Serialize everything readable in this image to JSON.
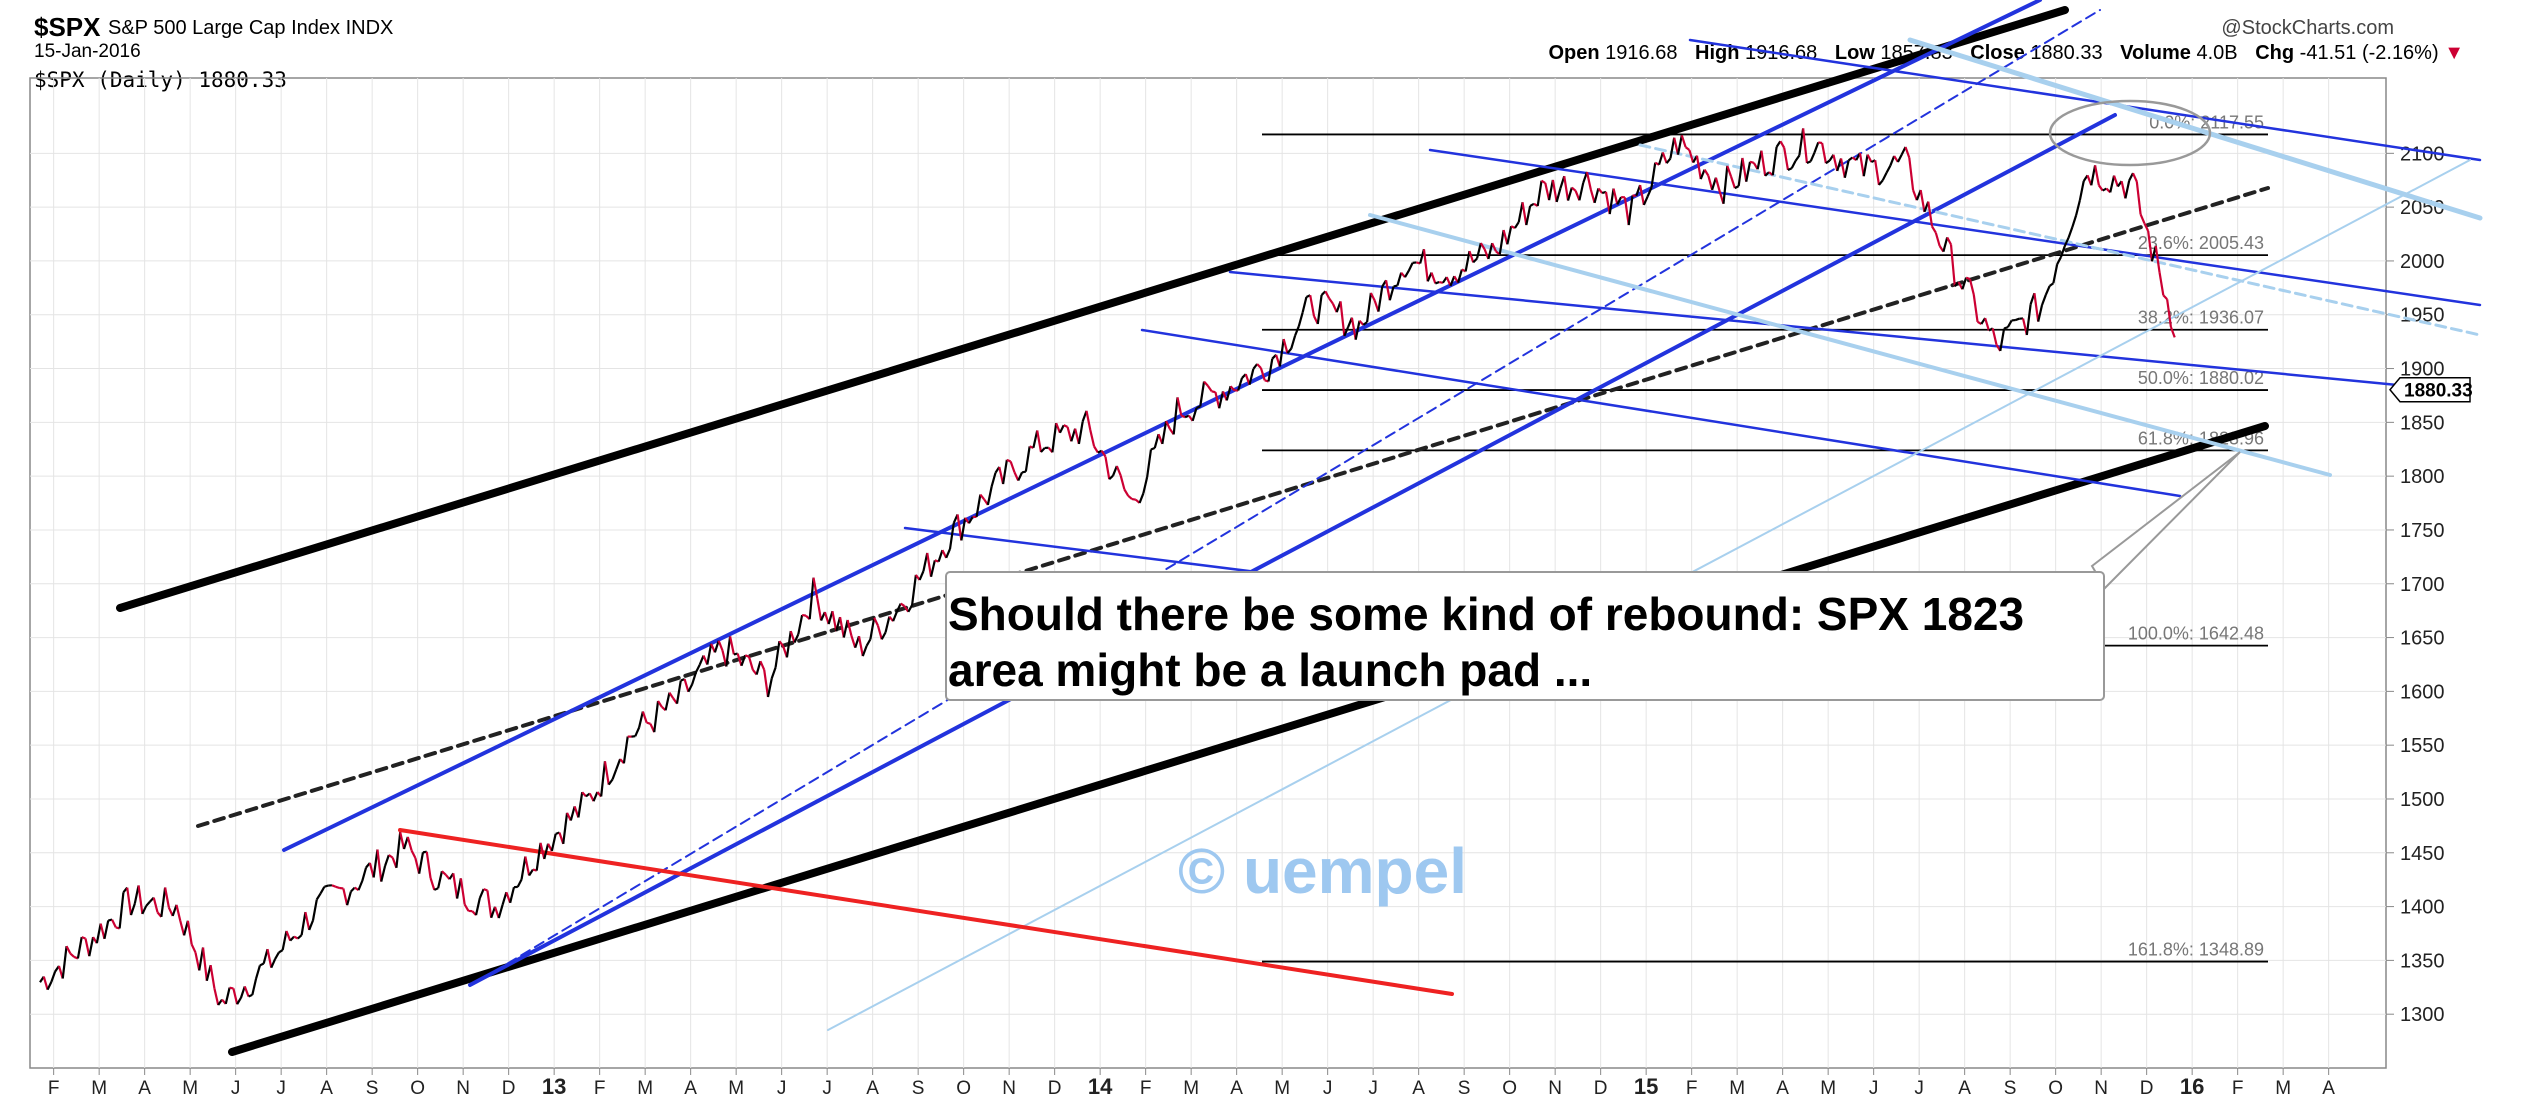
{
  "header": {
    "ticker": "$SPX",
    "name": "S&P 500 Large Cap Index",
    "exchange": "INDX",
    "date": "15-Jan-2016",
    "series_label": "$SPX (Daily) 1880.33",
    "source": "@StockCharts.com",
    "ohlc": {
      "open_label": "Open",
      "open": "1916.68",
      "high_label": "High",
      "high": "1916.68",
      "low_label": "Low",
      "low": "1857.83",
      "close_label": "Close",
      "close": "1880.33",
      "volume_label": "Volume",
      "volume": "4.0B",
      "chg_label": "Chg",
      "chg": "-41.51 (-2.16%)"
    }
  },
  "chart_data": {
    "type": "line",
    "title": "$SPX (Daily) 1880.33",
    "last_price": 1880.33,
    "last_price_label": "1880.33",
    "ylim": [
      1250,
      2170
    ],
    "y_ticks": [
      1300,
      1350,
      1400,
      1450,
      1500,
      1550,
      1600,
      1650,
      1700,
      1750,
      1800,
      1850,
      1900,
      1950,
      2000,
      2050,
      2100
    ],
    "x_tick_labels": [
      "F",
      "M",
      "A",
      "M",
      "J",
      "J",
      "A",
      "S",
      "O",
      "N",
      "D",
      "13",
      "F",
      "M",
      "A",
      "M",
      "J",
      "J",
      "A",
      "S",
      "O",
      "N",
      "D",
      "14",
      "F",
      "M",
      "A",
      "M",
      "J",
      "J",
      "A",
      "S",
      "O",
      "N",
      "D",
      "15",
      "F",
      "M",
      "A",
      "M",
      "J",
      "J",
      "A",
      "S",
      "O",
      "N",
      "D",
      "16",
      "F",
      "M",
      "A"
    ],
    "grid": true,
    "price_series": {
      "name": "$SPX",
      "x_month_index": [
        0,
        1,
        2,
        3,
        4,
        5,
        6,
        7,
        8,
        9,
        10,
        11,
        12,
        13,
        14,
        15,
        16,
        17,
        18,
        19,
        20,
        21,
        22,
        23,
        24,
        25,
        26,
        27,
        28,
        29,
        30,
        31,
        32,
        33,
        34,
        35,
        36,
        37,
        38,
        39,
        40,
        41,
        42,
        43,
        44,
        45,
        46,
        47
      ],
      "values": [
        1330,
        1365,
        1405,
        1400,
        1310,
        1345,
        1395,
        1425,
        1455,
        1420,
        1400,
        1455,
        1495,
        1560,
        1590,
        1640,
        1610,
        1690,
        1640,
        1685,
        1745,
        1790,
        1830,
        1845,
        1775,
        1860,
        1880,
        1905,
        1960,
        1940,
        2000,
        1990,
        2010,
        2065,
        2075,
        2045,
        2110,
        2070,
        2095,
        2110,
        2085,
        2090,
        2000,
        1920,
        1960,
        2085,
        2070,
        1930
      ]
    },
    "fibonacci_levels": [
      {
        "label": "0.0%: 2117.55",
        "value": 2117.55
      },
      {
        "label": "23.6%: 2005.43",
        "value": 2005.43
      },
      {
        "label": "38.2%: 1936.07",
        "value": 1936.07
      },
      {
        "label": "50.0%: 1880.02",
        "value": 1880.02
      },
      {
        "label": "61.8%: 1823.96",
        "value": 1823.96
      },
      {
        "label": "100.0%: 1642.48",
        "value": 1642.48
      },
      {
        "label": "161.8%: 1348.89",
        "value": 1348.89
      }
    ],
    "annotation": "Should there be some kind of rebound: SPX 1823 area might be a launch pad ...",
    "annotation_lines": [
      "Should there be some kind of rebound: SPX 1823",
      "area might be a launch pad ..."
    ],
    "watermark": "© uempel",
    "colors": {
      "price_up": "#000000",
      "price_down": "#cc0033",
      "channel_black": "#000000",
      "channel_blue": "#2233dd",
      "light_blue": "#a8d0ee",
      "red_line": "#ee2222",
      "watermark": "#9ec8f0",
      "chg_arrow": "#cc0033"
    }
  }
}
